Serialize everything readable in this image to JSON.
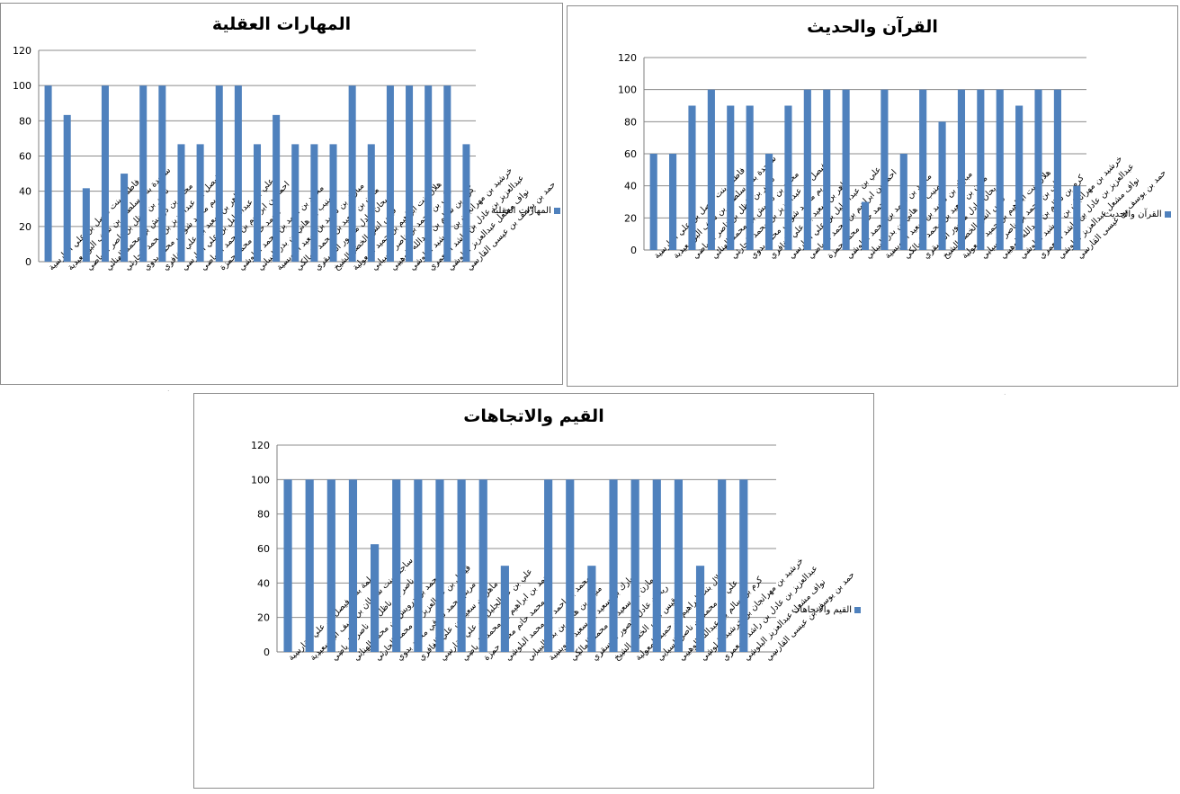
{
  "colors": {
    "bar": "#4f81bd",
    "grid": "#8c8c8c",
    "axis": "#7f7f7f"
  },
  "chart_data": [
    {
      "type": "bar",
      "title": "المهارات العقلية",
      "legend": "المهارات العقلية",
      "legend_position": "right",
      "ylim": [
        0,
        120
      ],
      "yticks": [
        0,
        20,
        40,
        60,
        80,
        100,
        120
      ],
      "grid": true,
      "categories": [
        "فاطمة بنت فيصل بن علي القارسية",
        "ساجدة بنت سلطان بن سيف البوسعيدية",
        "ناصر بن ناظل بن ناصر الرياضي",
        "محمد بن درويش بن محمد الهنائي",
        "فيصل بن عبدالعزيز بن محمد الحارثي",
        "مريم محمد شوقي محمد بدوي",
        "ماهر بن سعيد بن علي الغافري",
        "علي بن عبدالجليل بن علي القارسي",
        "احمد بن ابراهيم بن محمد الرياضي",
        "محمد حاتم محمد حمزة",
        "محمد بن احمد بن محمد البلوشي",
        "منيب بن هاني بن بدر البيباني",
        "مبارك بن سعيد بن سعيد العويسية",
        "مازن بن سعيد بن محمد المالكي",
        "ريحان عادل منصور المسقري",
        "قيس انس الخضر الشيخ",
        "هلال بنت ابراهيم بن حميد المعولية",
        "علي بن محمد بن ناصر السيابي",
        "كرم بن سالم بن عبدالله الوهيبي",
        "خرشيد بن مهرانجان بن خرشيد البلوشي",
        "عبدالعزيز بن عادل بن راشد المعمري",
        "نواف مشعل عبدالعزيز البلوشي",
        "حمد بن يوسف بن عيسى القارسي"
      ],
      "values": [
        100,
        83.3,
        41.7,
        100,
        50,
        100,
        100,
        66.7,
        66.7,
        100,
        100,
        66.7,
        83.3,
        66.7,
        66.7,
        66.7,
        100,
        66.7,
        100,
        100,
        100,
        100,
        66.7
      ]
    },
    {
      "type": "bar",
      "title": "القرآن والحديث",
      "legend": "القرآن والحديث",
      "legend_position": "right",
      "ylim": [
        0,
        120
      ],
      "yticks": [
        0,
        20,
        40,
        60,
        80,
        100,
        120
      ],
      "grid": true,
      "categories": [
        "فاطمة بنت فيصل بن علي القارسية",
        "ساجدة بنت سلطان بن سيف البوسعيدية",
        "ناصر بن ناظل بن ناصر الرياضي",
        "محمد بن درويش بن محمد الهنائي",
        "فيصل بن عبدالعزيز بن محمد الحارثي",
        "مريم محمد شوقي محمد بدوي",
        "ماهر بن سعيد بن علي الغافري",
        "علي بن عبدالجليل بن علي القارسي",
        "احمد بن ابراهيم بن محمد الرياضي",
        "محمد حاتم محمد حمزة",
        "محمد بن احمد بن محمد البلوشي",
        "منيب بن هاني بن بدر البيباني",
        "مبارك بن سعيد بن سعيد العويسية",
        "مازن بن سعيد بن محمد المالكي",
        "ريحان عادل منصور المسقري",
        "قيس انس الخضر الشيخ",
        "هلال بنت ابراهيم بن حميد المعولية",
        "علي بن محمد بن ناصر السيابي",
        "كرم بن سالم بن عبدالله الوهيبي",
        "خرشيد بن مهرانجان بن خرشيد البلوشي",
        "عبدالعزيز بن عادل بن راشد المعمري",
        "نواف مشعل عبدالعزيز البلوشي",
        "حمد بن يوسف بن عيسى القارسي"
      ],
      "values": [
        60,
        60,
        90,
        100,
        90,
        90,
        60,
        90,
        100,
        100,
        100,
        30,
        100,
        60,
        100,
        80,
        100,
        100,
        100,
        90,
        100,
        100,
        40
      ]
    },
    {
      "type": "bar",
      "title": "القيم والاتجاهات",
      "legend": "القيم والاتجاهات",
      "legend_position": "right",
      "ylim": [
        0,
        120
      ],
      "yticks": [
        0,
        20,
        40,
        60,
        80,
        100,
        120
      ],
      "grid": true,
      "categories": [
        "فاطمة بنت فيصل بن علي القارسية",
        "ساجدة بنت سلطان بن سيف البوسعيدية",
        "ناصر بن ناظل بن ناصر الرياضي",
        "محمد بن درويش بن محمد الهنائي",
        "فيصل بن عبدالعزيز بن محمد الحارثي",
        "مريم محمد شوقي محمد بدوي",
        "ماهر بن سعيد بن علي الغافري",
        "علي بن عبدالجليل بن علي القارسي",
        "احمد بن ابراهيم بن محمد الرياضي",
        "محمد حاتم محمد حمزة",
        "محمد بن احمد بن محمد البلوشي",
        "منيب بن هاني بن بدر البيباني",
        "مبارك بن سعيد بن سعيد العويسية",
        "مازن بن سعيد بن محمد المالكي",
        "ريحان عادل منصور المسقري",
        "قيس انس الخضر الشيخ",
        "هلال بنت ابراهيم بن حميد المعولية",
        "علي بن محمد بن ناصر السيابي",
        "كرم بن سالم بن عبدالله الوهيبي",
        "خرشيد بن مهرانجان بن خرشيد البلوشي",
        "عبدالعزيز بن عادل بن راشد المعمري",
        "نواف مشعل عبدالعزيز البلوشي",
        "حمد بن يوسف بن عيسى القارسي"
      ],
      "values": [
        100,
        100,
        100,
        100,
        62.5,
        100,
        100,
        100,
        100,
        100,
        50,
        0,
        100,
        100,
        50,
        100,
        100,
        100,
        100,
        50,
        100,
        100,
        0
      ]
    }
  ]
}
